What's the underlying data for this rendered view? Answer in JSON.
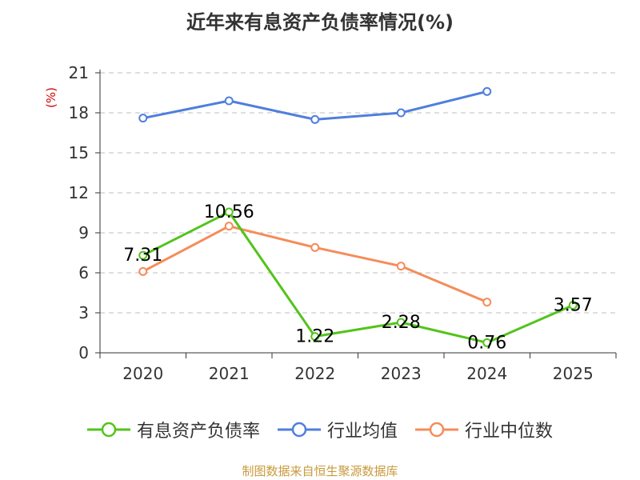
{
  "colors": {
    "series_0": "#52c41a",
    "series_1": "#4f7fdc",
    "series_2": "#f58c5a",
    "title": "#333333",
    "axis": "#333333",
    "grid": "#bfbfbf",
    "unit": "#d40000",
    "source": "#c89a3c"
  },
  "chart_data": {
    "type": "line",
    "title": "近年来有息资产负债率情况(%)",
    "unit_label": "(%)",
    "xlabel": "",
    "ylabel": "(%)",
    "categories": [
      "2020",
      "2021",
      "2022",
      "2023",
      "2024",
      "2025"
    ],
    "y_ticks": [
      "0",
      "3",
      "6",
      "9",
      "12",
      "15",
      "18",
      "21"
    ],
    "ylim": [
      0,
      21
    ],
    "grid": true,
    "legend_position": "bottom-center",
    "series": [
      {
        "name": "有息资产负债率",
        "values": [
          7.31,
          10.56,
          1.22,
          2.28,
          0.76,
          3.57
        ],
        "data_labels": [
          "7.31",
          "10.56",
          "1.22",
          "2.28",
          "0.76",
          "3.57"
        ]
      },
      {
        "name": "行业均值",
        "values": [
          17.6,
          18.9,
          17.5,
          18.0,
          19.6,
          null
        ]
      },
      {
        "name": "行业中位数",
        "values": [
          6.1,
          9.5,
          7.9,
          6.5,
          3.8,
          null
        ]
      }
    ]
  },
  "footer": {
    "source": "制图数据来自恒生聚源数据库"
  }
}
